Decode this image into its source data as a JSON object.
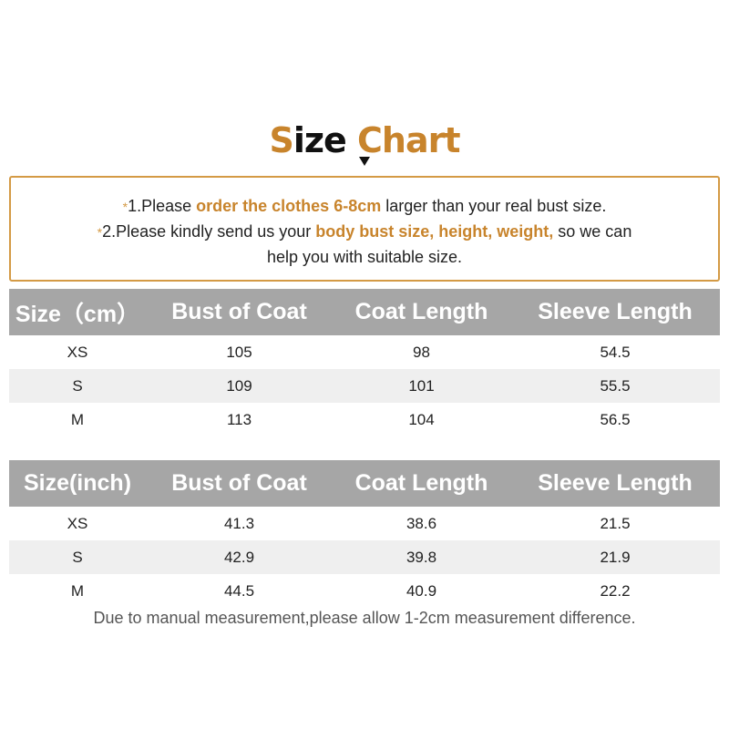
{
  "title": {
    "s": "S",
    "ize": "ize",
    "chart": "Chart"
  },
  "colors": {
    "accent": "#c8842c",
    "border": "#d49a45",
    "header_bg": "#a6a6a6",
    "alt_row": "#efefef"
  },
  "notes": {
    "line1": {
      "star": "*",
      "pre": "1.Please ",
      "highlight": "order the clothes 6-8cm",
      "post": " larger than your real bust size."
    },
    "line2": {
      "star": "*",
      "pre": "2.Please kindly send us your ",
      "highlight": "body bust size, height, weight,",
      "post": " so we can"
    },
    "line3": "help you with suitable size."
  },
  "tables": [
    {
      "headers": [
        "Size（cm）",
        "Bust of Coat",
        "Coat Length",
        "Sleeve Length"
      ],
      "rows": [
        [
          "XS",
          "105",
          "98",
          "54.5"
        ],
        [
          "S",
          "109",
          "101",
          "55.5"
        ],
        [
          "M",
          "113",
          "104",
          "56.5"
        ]
      ]
    },
    {
      "headers": [
        "Size(inch)",
        "Bust of Coat",
        "Coat Length",
        "Sleeve Length"
      ],
      "rows": [
        [
          "XS",
          "41.3",
          "38.6",
          "21.5"
        ],
        [
          "S",
          "42.9",
          "39.8",
          "21.9"
        ],
        [
          "M",
          "44.5",
          "40.9",
          "22.2"
        ]
      ]
    }
  ],
  "footer": "Due to manual measurement,please allow 1-2cm measurement difference."
}
